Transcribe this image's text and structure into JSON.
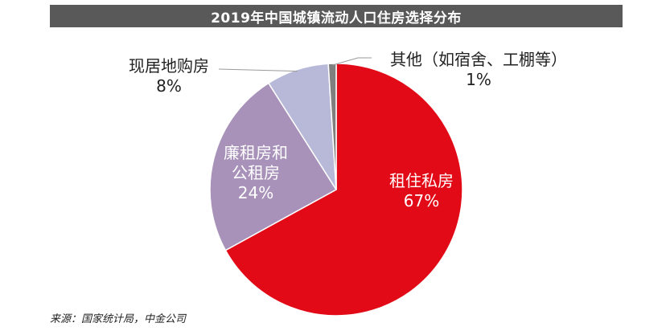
{
  "chart_data": {
    "type": "pie",
    "title": "2019年中国城镇流动人口住房选择分布",
    "slices": [
      {
        "label": "租住私房",
        "value": 67,
        "display": "67%",
        "color": "#e20a17",
        "label_color": "#ffffff"
      },
      {
        "label": "廉租房和公租房",
        "label_lines": [
          "廉租房和",
          "公租房"
        ],
        "value": 24,
        "display": "24%",
        "color": "#a892ba",
        "label_color": "#ffffff"
      },
      {
        "label": "现居地购房",
        "value": 8,
        "display": "8%",
        "color": "#b8b9d8",
        "label_color": "#222222"
      },
      {
        "label": "其他（如宿舍、工棚等）",
        "value": 1,
        "display": "1%",
        "color": "#7f7f7f",
        "label_color": "#222222"
      }
    ],
    "source": "来源：国家统计局，中金公司"
  }
}
